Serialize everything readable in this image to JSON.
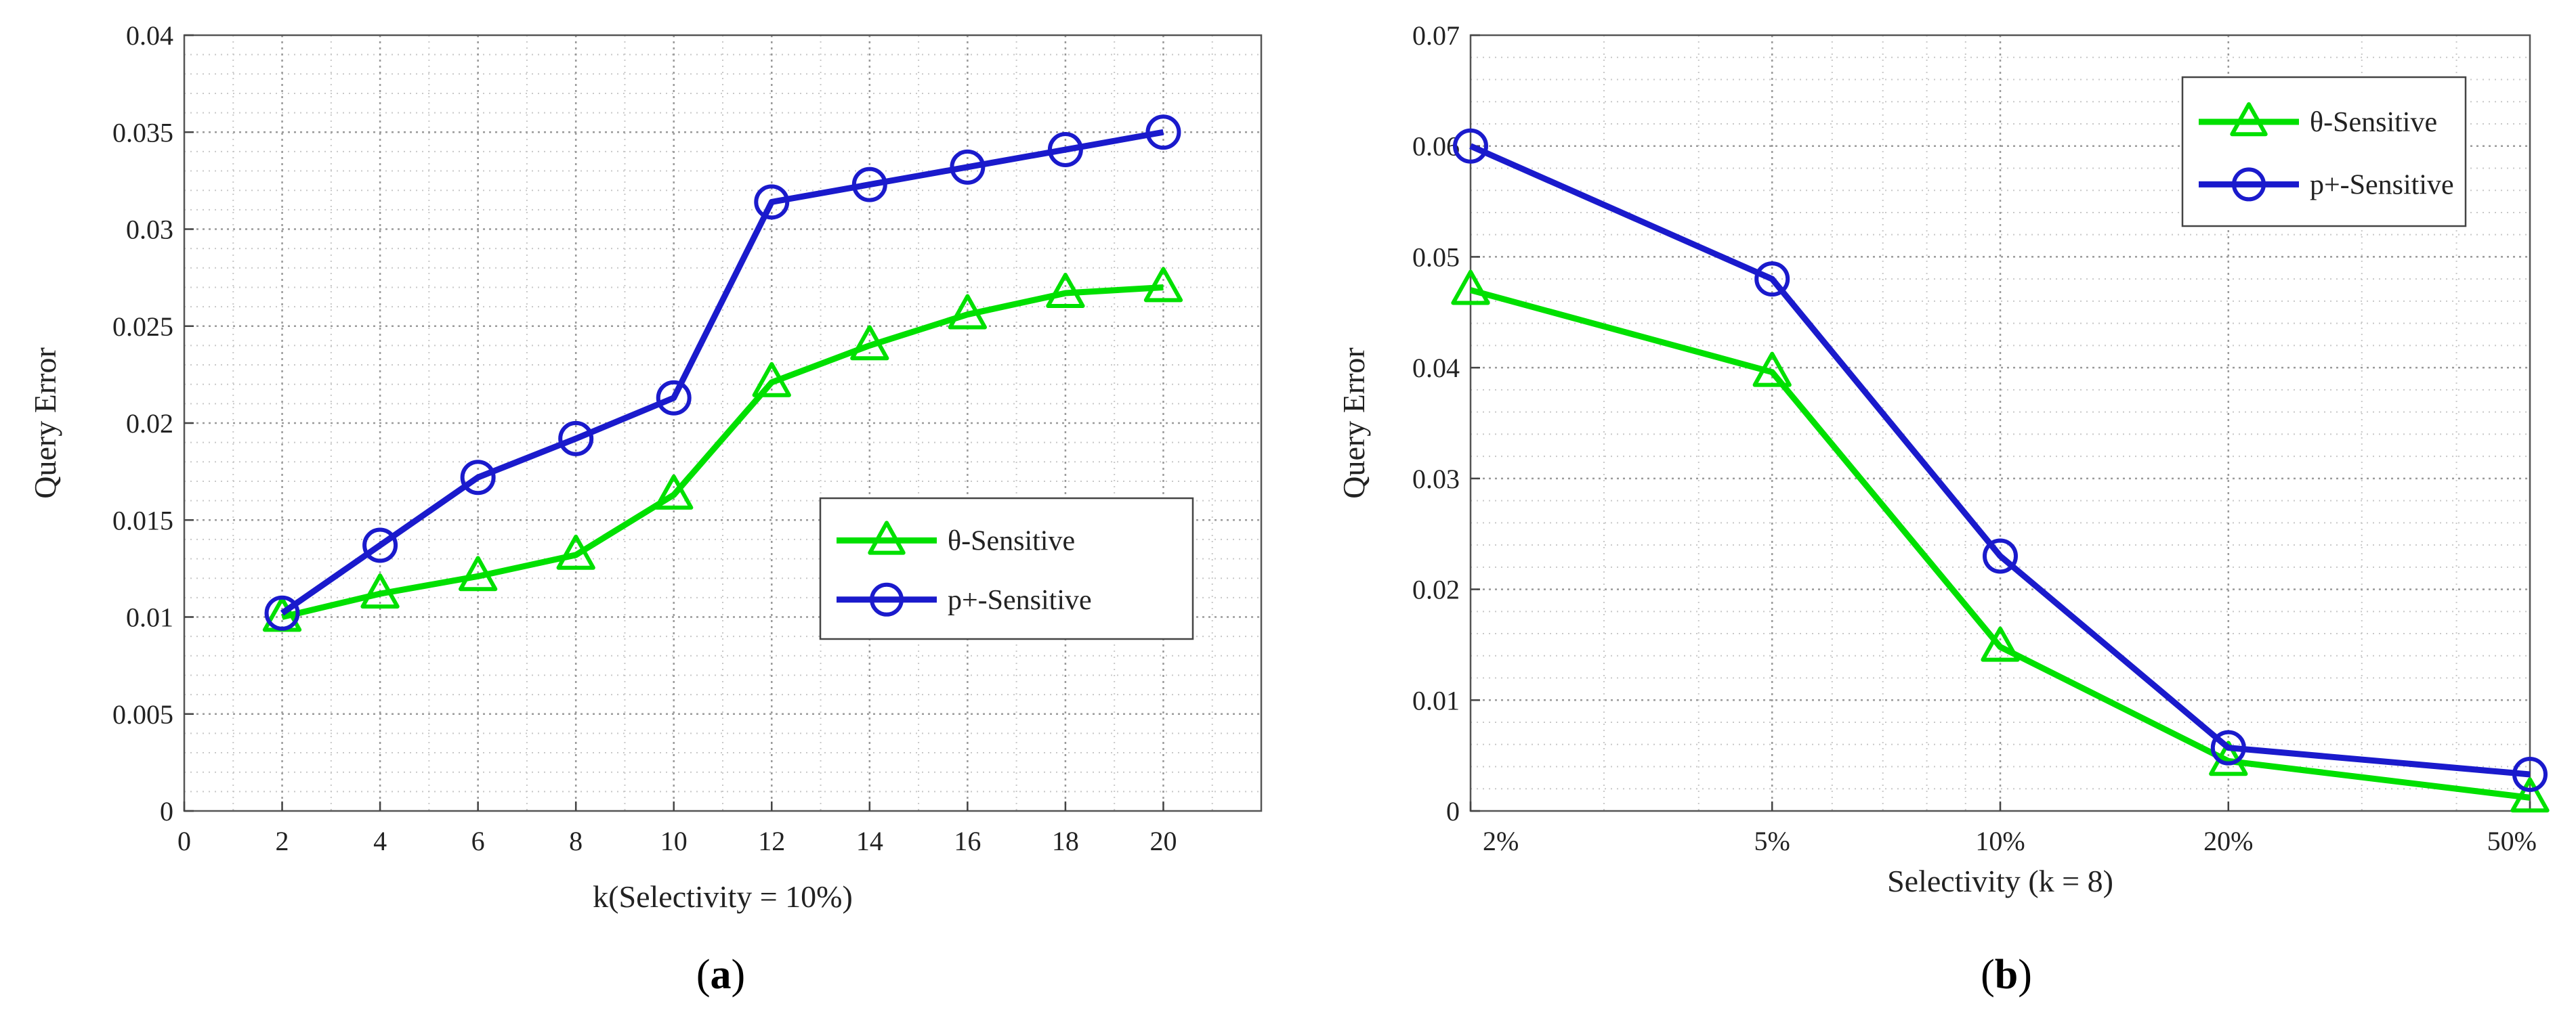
{
  "chart_data": [
    {
      "type": "line",
      "panel": "a",
      "caption": {
        "open": "(",
        "letter": "a",
        "close": ")"
      },
      "title": "",
      "xlabel": "k(Selectivity = 10%)",
      "ylabel": "Query Error",
      "xlim": [
        0,
        22
      ],
      "ylim": [
        0,
        0.04
      ],
      "x_scale": "linear",
      "x_ticks": [
        0,
        2,
        4,
        6,
        8,
        10,
        12,
        14,
        16,
        18,
        20
      ],
      "x_tick_labels": [
        "0",
        "2",
        "4",
        "6",
        "8",
        "10",
        "12",
        "14",
        "16",
        "18",
        "20"
      ],
      "y_ticks": [
        0,
        0.005,
        0.01,
        0.015,
        0.02,
        0.025,
        0.03,
        0.035,
        0.04
      ],
      "y_tick_labels": [
        "0",
        "0.005",
        "0.01",
        "0.015",
        "0.02",
        "0.025",
        "0.03",
        "0.035",
        "0.04"
      ],
      "grid": true,
      "legend_position": "center-right",
      "x": [
        2,
        4,
        6,
        8,
        10,
        12,
        14,
        16,
        18,
        20
      ],
      "series": [
        {
          "name": "θ-Sensitive",
          "color": "#00e000",
          "marker": "triangle",
          "values": [
            0.01,
            0.0112,
            0.0121,
            0.0132,
            0.0163,
            0.0221,
            0.024,
            0.0256,
            0.0267,
            0.027
          ]
        },
        {
          "name": "p+-Sensitive",
          "color": "#1a1acc",
          "marker": "circle",
          "values": [
            0.0102,
            0.0137,
            0.0172,
            0.0192,
            0.0213,
            0.0314,
            0.0323,
            0.0332,
            0.0341,
            0.035
          ]
        }
      ]
    },
    {
      "type": "line",
      "panel": "b",
      "caption": {
        "open": "(",
        "letter": "b",
        "close": ")"
      },
      "title": "",
      "xlabel": "Selectivity (k = 8)",
      "ylabel": "Query Error",
      "xlim": [
        2,
        50
      ],
      "ylim": [
        0,
        0.07
      ],
      "x_scale": "log",
      "x_ticks": [
        2,
        5,
        10,
        20,
        50
      ],
      "x_tick_labels": [
        "2%",
        "5%",
        "10%",
        "20%",
        "50%"
      ],
      "y_ticks": [
        0,
        0.01,
        0.02,
        0.03,
        0.04,
        0.05,
        0.06,
        0.07
      ],
      "y_tick_labels": [
        "0",
        "0.01",
        "0.02",
        "0.03",
        "0.04",
        "0.05",
        "0.06",
        "0.07"
      ],
      "grid": true,
      "legend_position": "top-right",
      "x": [
        2,
        5,
        10,
        20,
        50
      ],
      "series": [
        {
          "name": "θ-Sensitive",
          "color": "#00e000",
          "marker": "triangle",
          "values": [
            0.047,
            0.0396,
            0.0148,
            0.0045,
            0.0012
          ]
        },
        {
          "name": "p+-Sensitive",
          "color": "#1a1acc",
          "marker": "circle",
          "values": [
            0.06,
            0.048,
            0.023,
            0.0057,
            0.0033
          ]
        }
      ]
    }
  ]
}
